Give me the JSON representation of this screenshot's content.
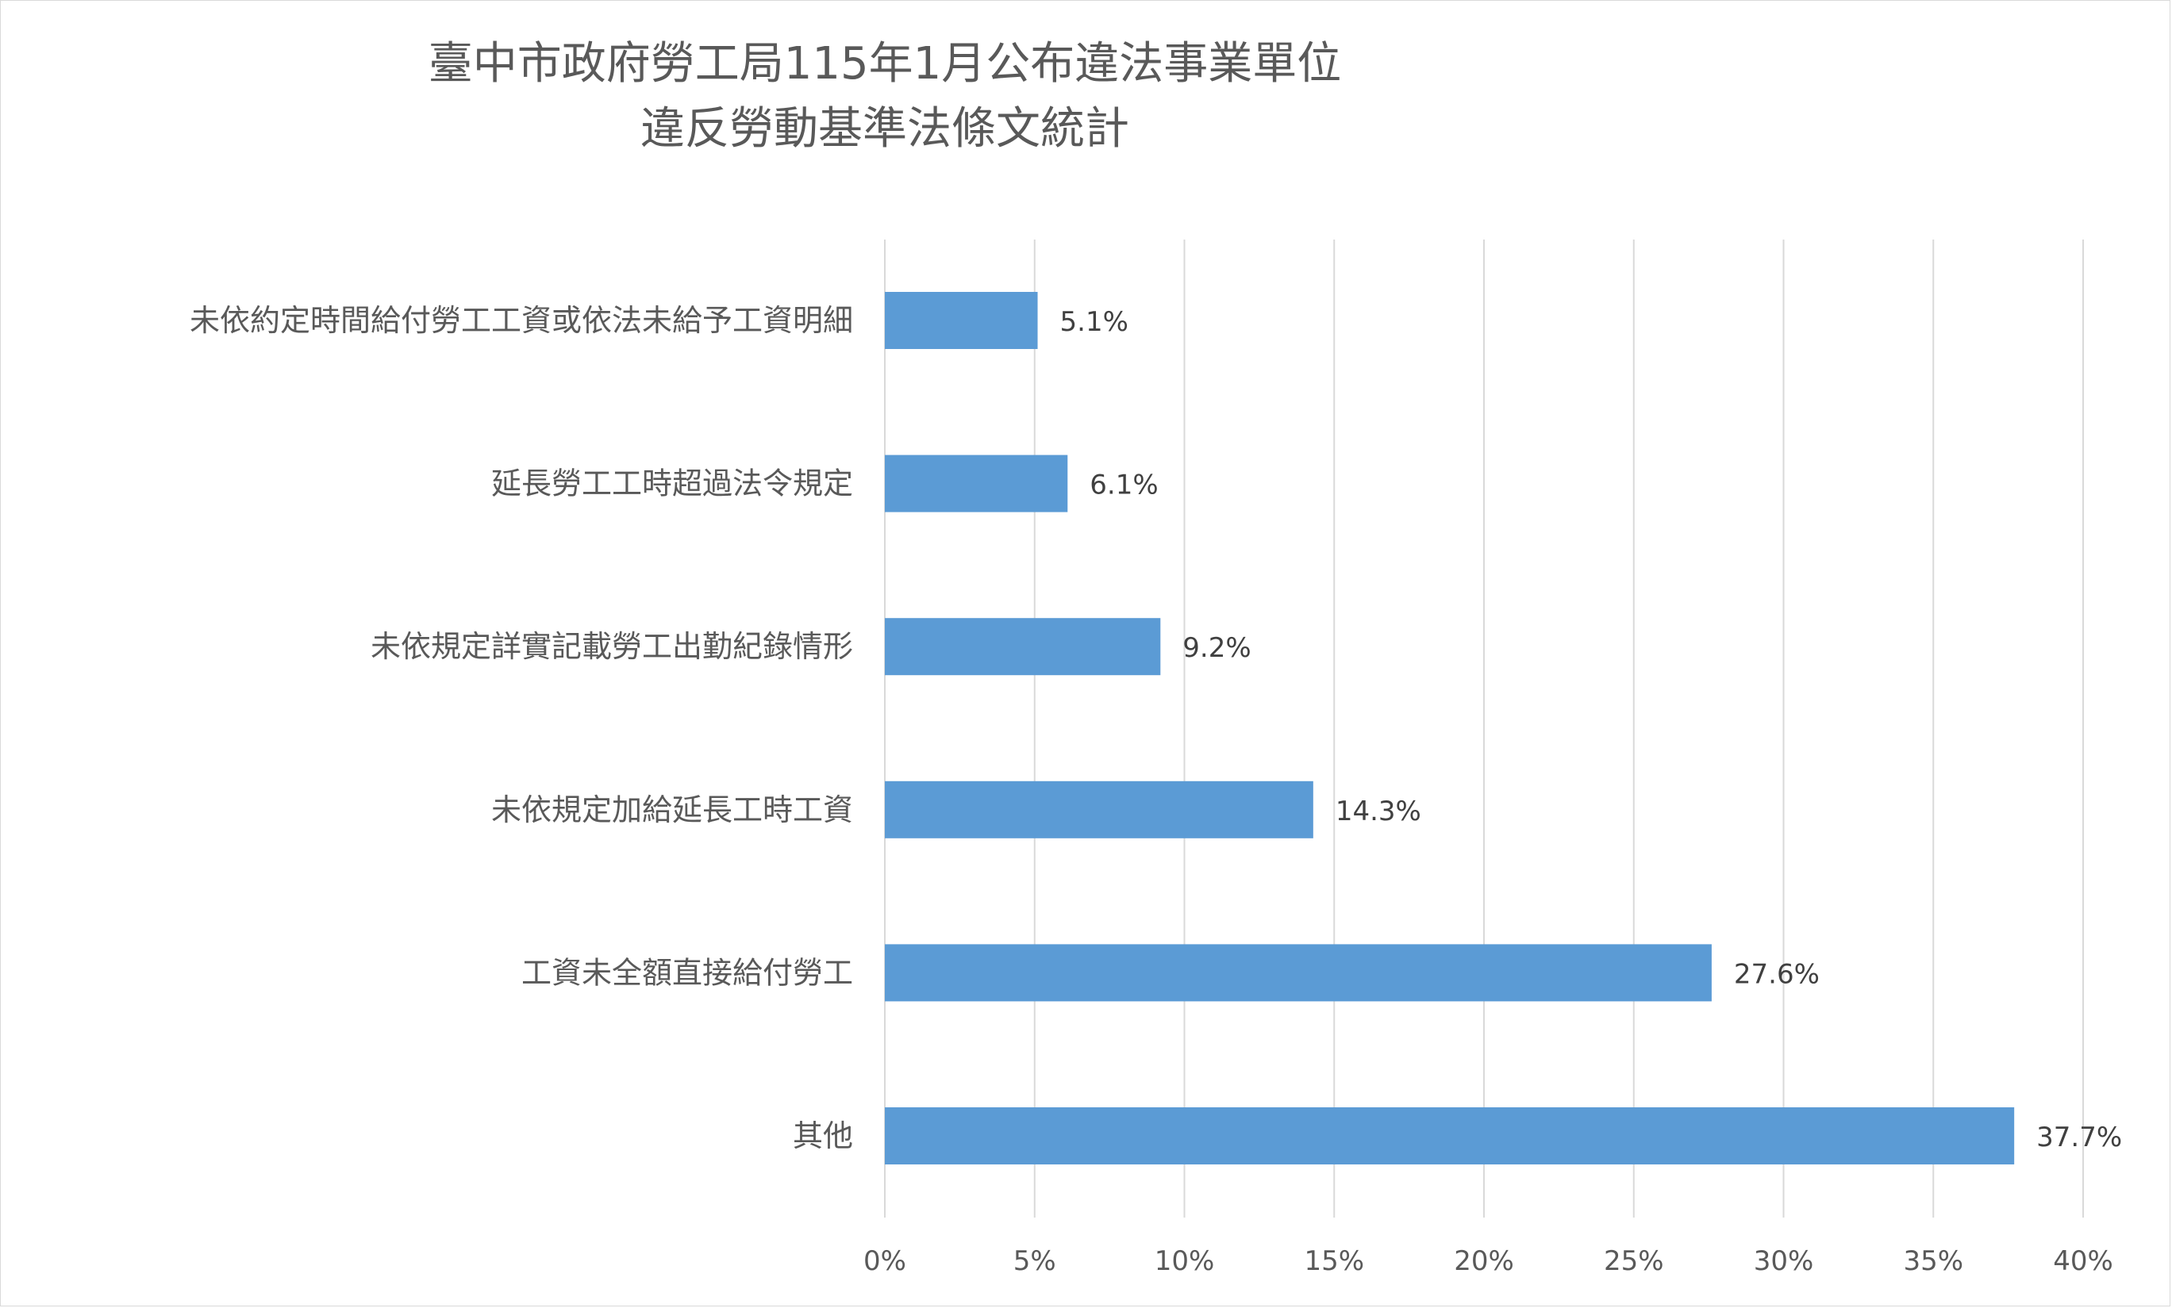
{
  "chart_data": {
    "type": "bar",
    "orientation": "horizontal",
    "title": "臺中市政府勞工局115年1月公布違法事業單位",
    "subtitle": "違反勞動基準法條文統計",
    "categories": [
      "未依約定時間給付勞工工資或依法未給予工資明細",
      "延長勞工工時超過法令規定",
      "未依規定詳實記載勞工出勤紀錄情形",
      "未依規定加給延長工時工資",
      "工資未全額直接給付勞工",
      "其他"
    ],
    "values": [
      5.1,
      6.1,
      9.2,
      14.3,
      27.6,
      37.7
    ],
    "data_labels": [
      "5.1%",
      "6.1%",
      "9.2%",
      "14.3%",
      "27.6%",
      "37.7%"
    ],
    "xlim": [
      0,
      40
    ],
    "x_ticks": [
      0,
      5,
      10,
      15,
      20,
      25,
      30,
      35,
      40
    ],
    "x_tick_labels": [
      "0%",
      "5%",
      "10%",
      "15%",
      "20%",
      "25%",
      "30%",
      "35%",
      "40%"
    ],
    "xlabel": "",
    "ylabel": "",
    "grid": "vertical gridlines on",
    "legend": "none",
    "bar_color": "#5b9bd5"
  }
}
